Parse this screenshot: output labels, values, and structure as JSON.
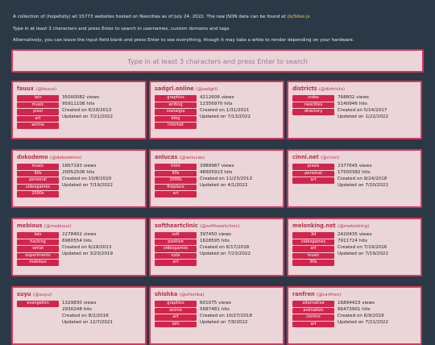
{
  "intro": {
    "line1_prefix": "A collection of (hopefully) all 15773 websites hosted on Neocities as of July 24, 2022. The raw JSON data can be found at",
    "line1_link": "/js/Sites.js",
    "line2": "Type in at least 3 characters and press Enter to search in usernames, custom domains and tags.",
    "line3": "Alternatively, you can leave the input field blank and press Enter to see everything, though it may take a while to render depending on your hardware."
  },
  "search": {
    "placeholder": "Type in at least 3 characters and press Enter to search",
    "value": ""
  },
  "cards": [
    {
      "name": "fauux",
      "user": "(@fauux)",
      "tags": [
        "lain",
        "music",
        "pixel",
        "art",
        "anime"
      ],
      "views": "35000082 views",
      "hits": "95911108 hits",
      "created": "Created on 6/29/2013",
      "updated": "Updated on 7/21/2022"
    },
    {
      "name": "sadgrl.online",
      "user": "(@sadgrl)",
      "tags": [
        "graphics",
        "writing",
        "nostalgia",
        "blog",
        "internet"
      ],
      "views": "4212606 views",
      "hits": "12356970 hits",
      "created": "Created on 1/31/2021",
      "updated": "Updated on 7/13/2022"
    },
    {
      "name": "districts",
      "user": "(@districts)",
      "tags": [
        "index",
        "neocities",
        "directory"
      ],
      "views": "768802 views",
      "hits": "5140946 hits",
      "created": "Created on 5/14/2017",
      "updated": "Updated on 1/22/2022"
    },
    {
      "name": "dokodemo",
      "user": "(@dokodemo)",
      "tags": [
        "music",
        "90s",
        "personal",
        "videogames",
        "2000s"
      ],
      "views": "1857193 views",
      "hits": "20052506 hits",
      "created": "Created on 10/8/2020",
      "updated": "Updated on 7/19/2022"
    },
    {
      "name": "anlucas",
      "user": "(@anlucas)",
      "tags": [
        "html",
        "90s",
        "2000s",
        "fireplace",
        "art"
      ],
      "views": "3989987 views",
      "hits": "48905923 hits",
      "created": "Created on 11/23/2013",
      "updated": "Updated on 4/1/2022"
    },
    {
      "name": "cinni.net",
      "user": "(@cinni)",
      "tags": [
        "pixels",
        "personal",
        "art"
      ],
      "views": "2377645 views",
      "hits": "17500382 hits",
      "created": "Created on 9/24/2018",
      "updated": "Updated on 7/20/2022"
    },
    {
      "name": "mebious",
      "user": "(@mebious)",
      "tags": [
        "lain",
        "hacking",
        "serial",
        "experiments",
        "mebious"
      ],
      "views": "2278402 views",
      "hits": "6960554 hits",
      "created": "Created on 6/29/2013",
      "updated": "Updated on 3/23/2019"
    },
    {
      "name": "softheartclinic",
      "user": "(@softheartclinic)",
      "tags": [
        "soft",
        "positive",
        "videogames",
        "cute",
        "art"
      ],
      "views": "397450 views",
      "hits": "1628595 hits",
      "created": "Created on 6/17/2018",
      "updated": "Updated on 7/23/2022"
    },
    {
      "name": "melonking.net",
      "user": "(@melonking)",
      "tags": [
        "3d",
        "videogames",
        "art",
        "music",
        "90s"
      ],
      "views": "2420435 views",
      "hits": "7911724 hits",
      "created": "Created on 7/19/2016",
      "updated": "Updated on 7/19/2022"
    },
    {
      "name": "suyu",
      "user": "(@suyu)",
      "tags": [
        "evangelion"
      ],
      "views": "1329830 views",
      "hits": "2930248 hits",
      "created": "Created on 8/2/2016",
      "updated": "Updated on 12/7/2021"
    },
    {
      "name": "shishka",
      "user": "(@shishka)",
      "tags": [
        "graphics",
        "anime",
        "art",
        "lain"
      ],
      "views": "601075 views",
      "hits": "5687481 hits",
      "created": "Created on 10/27/2018",
      "updated": "Updated on 7/9/2022"
    },
    {
      "name": "ranfren",
      "user": "(@ranfren)",
      "tags": [
        "alternative",
        "animation",
        "comics",
        "art"
      ],
      "views": "16894423 views",
      "hits": "66473901 hits",
      "created": "Created on 6/9/2016",
      "updated": "Updated on 7/21/2022"
    }
  ]
}
